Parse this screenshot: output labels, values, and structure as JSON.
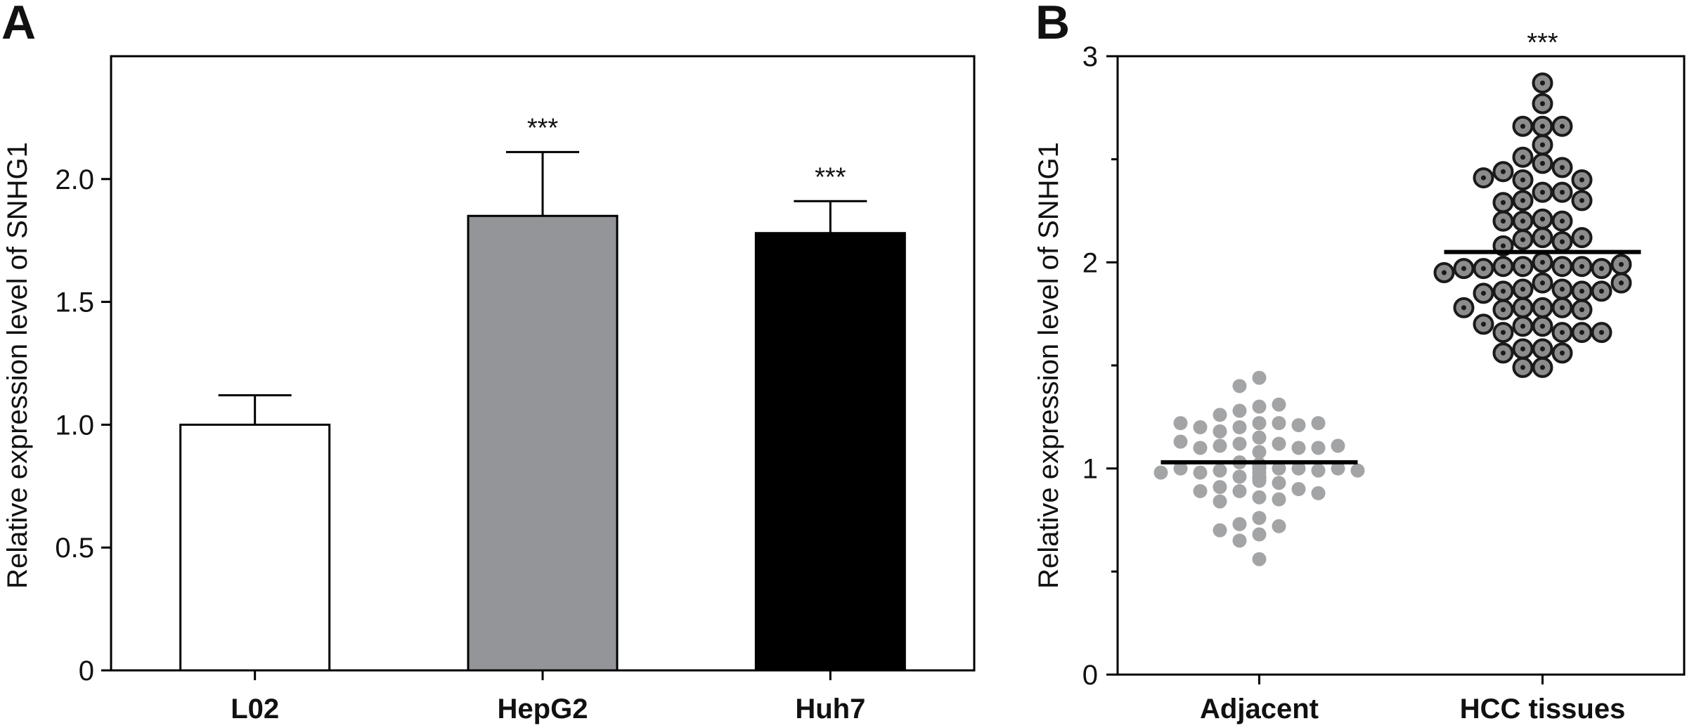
{
  "panels": {
    "a": {
      "letter": "A"
    },
    "b": {
      "letter": "B"
    }
  },
  "chart_data": [
    {
      "type": "bar",
      "panel": "A",
      "ylabel": "Relative expression level of SNHG1",
      "ylim": [
        0,
        2.5
      ],
      "yticks": [
        0,
        0.5,
        1.0,
        1.5,
        2.0
      ],
      "ytick_labels": [
        "0",
        "0.5",
        "1.0",
        "1.5",
        "2.0"
      ],
      "categories": [
        "L02",
        "HepG2",
        "Huh7"
      ],
      "values": [
        1.0,
        1.85,
        1.78
      ],
      "errors": [
        0.12,
        0.26,
        0.13
      ],
      "bar_colors": [
        "#ffffff",
        "#939598",
        "#000000"
      ],
      "significance": [
        "",
        "***",
        "***"
      ],
      "frame": "box",
      "grid": false
    },
    {
      "type": "scatter",
      "panel": "B",
      "ylabel": "Relative expression level of SNHG1",
      "ylim": [
        0,
        3
      ],
      "yticks": [
        0,
        1,
        2,
        3
      ],
      "ytick_labels": [
        "0",
        "1",
        "2",
        "3"
      ],
      "categories": [
        "Adjacent",
        "HCC tissues"
      ],
      "significance": [
        "",
        "***"
      ],
      "means": [
        1.03,
        2.05
      ],
      "frame": "box",
      "grid": false,
      "series": [
        {
          "name": "Adjacent",
          "color": "#a3a4a6",
          "marker": "filled-circle",
          "values": [
            1.44,
            1.4,
            1.3,
            1.28,
            1.31,
            1.26,
            1.22,
            1.22,
            1.2,
            1.21,
            1.2,
            1.22,
            1.22,
            1.18,
            1.15,
            1.12,
            1.12,
            1.11,
            1.1,
            1.1,
            1.1,
            1.08,
            1.13,
            1.11,
            1.03,
            1.01,
            1.0,
            0.99,
            1.0,
            0.98,
            0.99,
            1.0,
            1.0,
            0.98,
            0.99,
            1.01,
            1.0,
            1.02,
            0.98,
            0.96,
            0.95,
            0.94,
            0.95,
            0.96,
            0.93,
            0.91,
            0.9,
            0.89,
            0.89,
            0.88,
            0.86,
            0.85,
            0.84,
            0.76,
            0.73,
            0.72,
            0.7,
            0.68,
            0.65,
            0.56
          ]
        },
        {
          "name": "HCC tissues",
          "color": "#8c8c8c",
          "marker": "ringed-circle",
          "values": [
            2.87,
            2.77,
            2.66,
            2.66,
            2.66,
            2.57,
            2.51,
            2.48,
            2.46,
            2.44,
            2.4,
            2.4,
            2.41,
            2.34,
            2.34,
            2.3,
            2.29,
            2.3,
            2.21,
            2.2,
            2.2,
            2.2,
            2.12,
            2.12,
            2.11,
            2.1,
            2.08,
            2.0,
            1.98,
            1.98,
            1.98,
            1.98,
            1.97,
            1.97,
            1.97,
            1.99,
            1.95,
            1.9,
            1.9,
            1.87,
            1.87,
            1.86,
            1.86,
            1.85,
            1.86,
            1.78,
            1.78,
            1.78,
            1.77,
            1.77,
            1.78,
            1.7,
            1.69,
            1.69,
            1.66,
            1.66,
            1.66,
            1.66,
            1.58,
            1.58,
            1.56,
            1.56,
            1.49,
            1.49
          ]
        }
      ]
    }
  ]
}
